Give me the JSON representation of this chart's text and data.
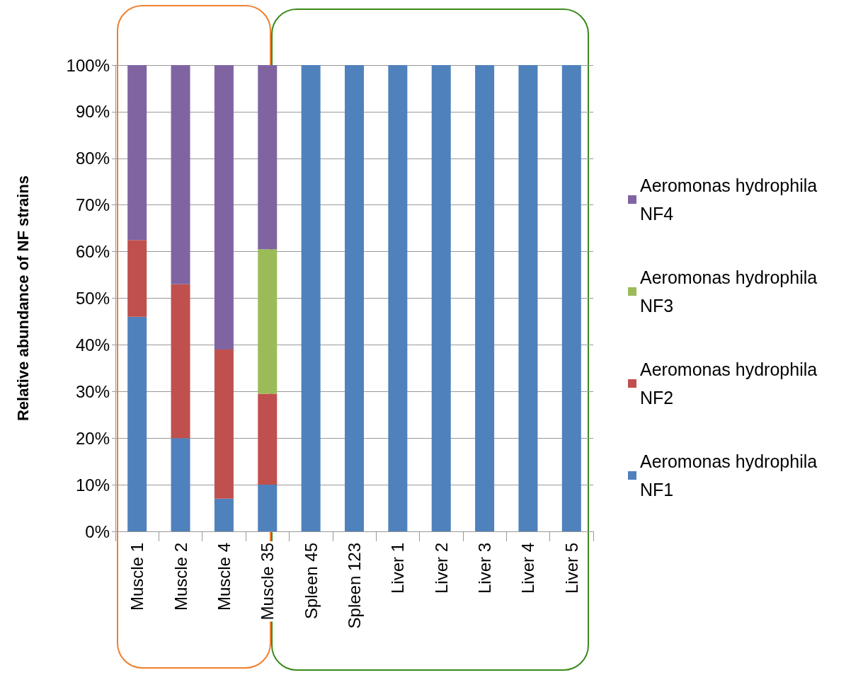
{
  "chart_data": {
    "type": "bar",
    "ylabel": "Relative abundance of NF strains",
    "categories": [
      "Muscle 1",
      "Muscle 2",
      "Muscle 4",
      "Muscle 35",
      "Spleen 45",
      "Spleen 123",
      "Liver 1",
      "Liver 2",
      "Liver 3",
      "Liver 4",
      "Liver 5"
    ],
    "stacked": true,
    "series": [
      {
        "name": "Aeromonas hydrophila NF1",
        "color": "#4f81bd",
        "values": [
          46,
          20,
          7,
          10,
          100,
          100,
          100,
          100,
          100,
          100,
          100
        ]
      },
      {
        "name": "Aeromonas hydrophila NF2",
        "color": "#c0504d",
        "values": [
          16.5,
          33,
          32,
          19.5,
          0,
          0,
          0,
          0,
          0,
          0,
          0
        ]
      },
      {
        "name": "Aeromonas hydrophila NF3",
        "color": "#9bbb59",
        "values": [
          0,
          0,
          0,
          31,
          0,
          0,
          0,
          0,
          0,
          0,
          0
        ]
      },
      {
        "name": "Aeromonas hydrophila NF4",
        "color": "#8064a2",
        "values": [
          37.5,
          47,
          61,
          39.5,
          0,
          0,
          0,
          0,
          0,
          0,
          0
        ]
      }
    ],
    "ylim": [
      0,
      100
    ],
    "yticks": [
      {
        "value": 0,
        "label": "0%"
      },
      {
        "value": 10,
        "label": "10%"
      },
      {
        "value": 20,
        "label": "20%"
      },
      {
        "value": 30,
        "label": "30%"
      },
      {
        "value": 40,
        "label": "40%"
      },
      {
        "value": 50,
        "label": "50%"
      },
      {
        "value": 60,
        "label": "60%"
      },
      {
        "value": 70,
        "label": "70%"
      },
      {
        "value": 80,
        "label": "80%"
      },
      {
        "value": 90,
        "label": "90%"
      },
      {
        "value": 100,
        "label": "100%"
      }
    ],
    "grid": "y",
    "legend": "right"
  }
}
